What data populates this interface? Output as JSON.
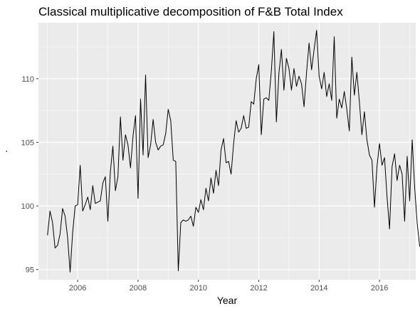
{
  "chart_data": {
    "type": "line",
    "title": "Classical multiplicative decomposition of F&B Total Index",
    "xlabel": "Year",
    "ylabel": ".",
    "xlim": [
      2004.7,
      2017.2
    ],
    "ylim": [
      94.2,
      114.4
    ],
    "xticks": [
      2006,
      2008,
      2010,
      2012,
      2014,
      2016
    ],
    "yticks": [
      95,
      100,
      105,
      110
    ],
    "grid": true,
    "panel_background": "#ebebeb",
    "grid_color": "#ffffff",
    "line_color": "#000000",
    "series": [
      {
        "x_start": 2005.0,
        "x_step": 0.08333,
        "values": [
          97.7,
          99.6,
          98.7,
          96.7,
          96.9,
          97.8,
          99.8,
          99.2,
          97.5,
          94.8,
          97.9,
          100.0,
          100.1,
          103.2,
          99.6,
          100.1,
          100.7,
          99.7,
          101.6,
          100.2,
          100.3,
          100.4,
          101.8,
          102.3,
          98.8,
          102.7,
          104.7,
          101.2,
          102.3,
          107.0,
          103.6,
          105.6,
          104.8,
          103.0,
          105.5,
          107.1,
          100.6,
          108.4,
          104.0,
          110.3,
          103.8,
          104.8,
          106.8,
          105.0,
          104.4,
          104.7,
          104.8,
          105.7,
          107.6,
          106.7,
          103.6,
          103.5,
          94.9,
          98.7,
          98.9,
          98.8,
          98.9,
          99.2,
          98.4,
          99.9,
          99.5,
          100.5,
          99.7,
          101.4,
          100.4,
          102.2,
          101.0,
          102.8,
          101.6,
          104.4,
          105.3,
          103.4,
          103.5,
          102.5,
          104.9,
          106.7,
          105.8,
          106.1,
          107.1,
          106.1,
          106.2,
          108.2,
          108.0,
          110.0,
          111.1,
          105.6,
          108.4,
          108.5,
          108.3,
          110.6,
          113.7,
          106.6,
          110.4,
          112.3,
          109.1,
          111.6,
          110.8,
          109.1,
          110.8,
          109.4,
          110.2,
          109.6,
          107.8,
          110.5,
          112.8,
          110.7,
          112.3,
          113.8,
          110.2,
          109.2,
          110.5,
          108.6,
          109.6,
          108.3,
          113.3,
          106.9,
          108.4,
          107.7,
          109.0,
          107.6,
          105.9,
          111.7,
          108.7,
          110.5,
          108.2,
          105.6,
          107.4,
          105.2,
          104.0,
          103.6,
          99.9,
          103.1,
          104.9,
          103.2,
          103.8,
          100.7,
          98.2,
          103.1,
          104.1,
          102.0,
          103.2,
          102.5,
          98.8,
          103.9,
          100.4,
          105.2,
          101.4,
          98.6,
          96.8
        ]
      }
    ]
  }
}
